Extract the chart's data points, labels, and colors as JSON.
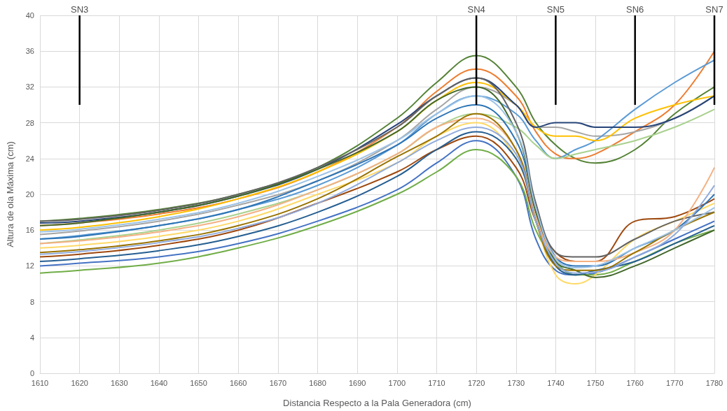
{
  "chart_data": {
    "type": "line",
    "xlabel": "Distancia Respecto a la Pala Generadora (cm)",
    "ylabel": "Altura de ola Máxima (cm)",
    "x": [
      1610,
      1620,
      1640,
      1660,
      1680,
      1700,
      1710,
      1720,
      1730,
      1735,
      1740,
      1745,
      1750,
      1760,
      1770,
      1780
    ],
    "xlim": [
      1610,
      1780
    ],
    "xticks": [
      1610,
      1620,
      1630,
      1640,
      1650,
      1660,
      1670,
      1680,
      1690,
      1700,
      1710,
      1720,
      1730,
      1740,
      1750,
      1760,
      1770,
      1780
    ],
    "ylim": [
      0,
      40
    ],
    "yticks": [
      0,
      4,
      8,
      12,
      16,
      20,
      24,
      28,
      32,
      36,
      40
    ],
    "grid": true,
    "marker": "none",
    "line_style": "solid",
    "series": [
      {
        "color": "#548235",
        "values": [
          17.0,
          17.3,
          18.3,
          20.0,
          23.0,
          28.5,
          32.5,
          35.5,
          32,
          28,
          25.5,
          24,
          23.5,
          25,
          29,
          32
        ]
      },
      {
        "color": "#ed7d31",
        "values": [
          16.5,
          16.8,
          17.8,
          19.5,
          22.5,
          27.5,
          31.5,
          34,
          31,
          27,
          24.5,
          24,
          24.5,
          27,
          30,
          36
        ]
      },
      {
        "color": "#a5a5a5",
        "values": [
          15.5,
          15.9,
          17,
          18.8,
          21.5,
          26,
          29.5,
          32,
          30,
          27.5,
          27.5,
          27,
          26.5,
          27,
          28.5,
          31
        ]
      },
      {
        "color": "#5b9bd5",
        "values": [
          15,
          15.4,
          16.5,
          18.3,
          21,
          25.5,
          29,
          31,
          29,
          26,
          24,
          25,
          26,
          29.5,
          32.5,
          35
        ]
      },
      {
        "color": "#ffc000",
        "values": [
          16,
          16.3,
          17.5,
          19.5,
          22.5,
          27,
          30.5,
          32.5,
          30,
          27.5,
          26.5,
          26.5,
          26,
          28.5,
          30,
          31
        ]
      },
      {
        "color": "#a9d18e",
        "values": [
          14.5,
          14.9,
          16,
          17.8,
          20.5,
          24.5,
          27.5,
          29,
          27.5,
          25.5,
          24,
          24.5,
          25,
          26,
          27.5,
          29.5
        ]
      },
      {
        "color": "#264478",
        "values": [
          16.8,
          17,
          18,
          19.8,
          22.8,
          27.8,
          31,
          33,
          30,
          27.5,
          28,
          28,
          27.5,
          27.5,
          28.5,
          31
        ]
      },
      {
        "color": "#4472c4",
        "values": [
          12,
          12.3,
          13,
          14.5,
          17,
          20.5,
          23.5,
          26,
          22,
          15,
          11.5,
          11,
          11.2,
          13,
          15,
          17
        ]
      },
      {
        "color": "#70ad47",
        "values": [
          11.2,
          11.5,
          12.3,
          14,
          16.5,
          20,
          22.5,
          25,
          22,
          16,
          12.5,
          11,
          11,
          12.5,
          14.5,
          16
        ]
      },
      {
        "color": "#9e480e",
        "values": [
          13,
          13.3,
          14.3,
          16,
          19,
          22.5,
          25,
          26.5,
          23,
          17,
          13.5,
          12.5,
          12.5,
          17,
          17.5,
          19.5
        ]
      },
      {
        "color": "#ffd966",
        "values": [
          14,
          14.3,
          15.3,
          17,
          20,
          23.5,
          26.5,
          28,
          24,
          17,
          11,
          10,
          11,
          15,
          17,
          19
        ]
      },
      {
        "color": "#2e75b6",
        "values": [
          15,
          15.3,
          16.5,
          18.3,
          21.5,
          25.5,
          28.5,
          30,
          26,
          18,
          13,
          12,
          12,
          14,
          16,
          20
        ]
      },
      {
        "color": "#636363",
        "values": [
          17,
          17.2,
          18.2,
          20,
          23,
          27.5,
          31,
          33,
          28,
          19,
          13.5,
          13,
          13,
          15,
          17,
          18
        ]
      },
      {
        "color": "#43682b",
        "values": [
          16.5,
          16.8,
          18,
          19.8,
          22.8,
          27,
          30.5,
          32,
          27,
          18,
          12.5,
          11.5,
          10.7,
          12,
          14,
          16
        ]
      },
      {
        "color": "#f4b183",
        "values": [
          14.5,
          14.8,
          15.8,
          17.5,
          20.5,
          24.5,
          27.5,
          28.5,
          25,
          17.5,
          13,
          12.5,
          12.5,
          13.5,
          16,
          23
        ]
      },
      {
        "color": "#255e91",
        "values": [
          12.5,
          12.8,
          13.7,
          15.3,
          18,
          22,
          25,
          27,
          24,
          17,
          12,
          11,
          11.5,
          12.5,
          14.5,
          16.5
        ]
      },
      {
        "color": "#997300",
        "values": [
          13.5,
          13.8,
          14.8,
          16.5,
          19.5,
          24.2,
          26.5,
          29,
          25,
          17,
          12,
          11.5,
          11.5,
          13.5,
          16,
          18
        ]
      },
      {
        "color": "#9dc3e6",
        "values": [
          15.8,
          16.1,
          17.2,
          19,
          22,
          26,
          29,
          31,
          27,
          18.5,
          12.8,
          11.8,
          12,
          14,
          16,
          18.5
        ]
      },
      {
        "color": "#8faadc",
        "values": [
          13.3,
          13.6,
          14.6,
          16.2,
          19,
          23.5,
          26,
          27.5,
          24.5,
          17,
          12.3,
          11.2,
          11.3,
          13,
          15.5,
          21
        ]
      },
      {
        "color": "#000000",
        "x": [
          1620,
          1620
        ],
        "values": [
          30,
          40
        ]
      },
      {
        "color": "#000000",
        "x": [
          1720,
          1720
        ],
        "values": [
          30,
          40
        ]
      },
      {
        "color": "#000000",
        "x": [
          1740,
          1740
        ],
        "values": [
          30,
          40
        ]
      },
      {
        "color": "#000000",
        "x": [
          1760,
          1760
        ],
        "values": [
          30,
          40
        ]
      },
      {
        "color": "#000000",
        "x": [
          1780,
          1780
        ],
        "values": [
          30,
          40
        ]
      }
    ],
    "annotations": [
      {
        "text": "SN3",
        "x": 1620,
        "y": 40
      },
      {
        "text": "SN4",
        "x": 1720,
        "y": 40
      },
      {
        "text": "SN5",
        "x": 1740,
        "y": 40
      },
      {
        "text": "SN6",
        "x": 1760,
        "y": 40
      },
      {
        "text": "SN7",
        "x": 1780,
        "y": 40
      }
    ]
  }
}
